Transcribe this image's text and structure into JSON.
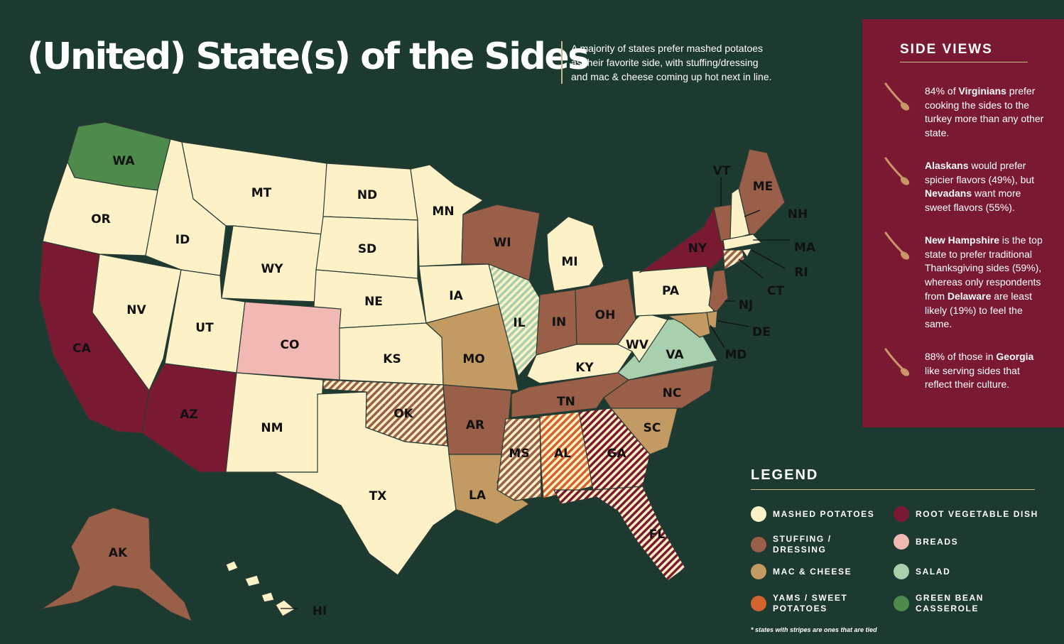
{
  "title": "(United) State(s) of the Sides",
  "subtitle": [
    "A majority of states prefer mashed potatoes",
    "as their favorite side, with stuffing/dressing",
    "and mac & cheese coming up hot next in line."
  ],
  "colors": {
    "background": "#1c3a30",
    "mashed_potatoes": "#fdf1c7",
    "stuffing_dressing": "#9a5f48",
    "mac_cheese": "#c49a63",
    "yams_sweet_potatoes": "#d4622f",
    "root_vegetable_dish": "#7a1a32",
    "breads": "#f1b8b4",
    "salad": "#a8cfae",
    "green_bean_casserole": "#4e8a4c",
    "accent_gold": "#c9b98a"
  },
  "side_views": {
    "title": "SIDE VIEWS",
    "facts": [
      {
        "icon": "spoon-icon",
        "parts": [
          [
            "84% of ",
            false
          ],
          [
            "Virginians",
            true
          ],
          [
            " prefer cooking the sides to the turkey more than any other state.",
            false
          ]
        ]
      },
      {
        "icon": "spoon-icon",
        "parts": [
          [
            "Alaskans",
            true
          ],
          [
            " would prefer spicier flavors (49%), but ",
            false
          ],
          [
            "Nevadans",
            true
          ],
          [
            " want more sweet flavors (55%).",
            false
          ]
        ]
      },
      {
        "icon": "spoon-icon",
        "parts": [
          [
            "New Hampshire",
            true
          ],
          [
            " is the top state to prefer traditional Thanksgiving sides (59%), whereas only respondents from ",
            false
          ],
          [
            "Delaware",
            true
          ],
          [
            " are least likely (19%) to feel the same.",
            false
          ]
        ]
      },
      {
        "icon": "spoon-icon",
        "parts": [
          [
            "88% of those in ",
            false
          ],
          [
            "Georgia",
            true
          ],
          [
            " like serving sides that reflect their culture.",
            false
          ]
        ]
      }
    ]
  },
  "legend": {
    "title": "LEGEND",
    "items": [
      {
        "key": "mashed_potatoes",
        "label": "MASHED POTATOES"
      },
      {
        "key": "stuffing_dressing",
        "label": "STUFFING / DRESSING"
      },
      {
        "key": "mac_cheese",
        "label": "MAC & CHEESE"
      },
      {
        "key": "yams_sweet_potatoes",
        "label": "YAMS / SWEET POTATOES"
      },
      {
        "key": "root_vegetable_dish",
        "label": "ROOT VEGETABLE DISH"
      },
      {
        "key": "breads",
        "label": "BREADS"
      },
      {
        "key": "salad",
        "label": "SALAD"
      },
      {
        "key": "green_bean_casserole",
        "label": "GREEN BEAN CASSEROLE"
      }
    ],
    "note": "* states with stripes are ones that are tied"
  },
  "states": [
    {
      "abbr": "WA",
      "category": "green_bean_casserole"
    },
    {
      "abbr": "OR",
      "category": "mashed_potatoes"
    },
    {
      "abbr": "CA",
      "category": "root_vegetable_dish"
    },
    {
      "abbr": "NV",
      "category": "mashed_potatoes"
    },
    {
      "abbr": "ID",
      "category": "mashed_potatoes"
    },
    {
      "abbr": "MT",
      "category": "mashed_potatoes"
    },
    {
      "abbr": "WY",
      "category": "mashed_potatoes"
    },
    {
      "abbr": "UT",
      "category": "mashed_potatoes"
    },
    {
      "abbr": "AZ",
      "category": "root_vegetable_dish"
    },
    {
      "abbr": "CO",
      "category": "breads"
    },
    {
      "abbr": "NM",
      "category": "mashed_potatoes"
    },
    {
      "abbr": "ND",
      "category": "mashed_potatoes"
    },
    {
      "abbr": "SD",
      "category": "mashed_potatoes"
    },
    {
      "abbr": "NE",
      "category": "mashed_potatoes"
    },
    {
      "abbr": "KS",
      "category": "mashed_potatoes"
    },
    {
      "abbr": "OK",
      "category": "stuffing_dressing",
      "striped": true
    },
    {
      "abbr": "TX",
      "category": "mashed_potatoes"
    },
    {
      "abbr": "MN",
      "category": "mashed_potatoes"
    },
    {
      "abbr": "IA",
      "category": "mashed_potatoes"
    },
    {
      "abbr": "MO",
      "category": "mac_cheese"
    },
    {
      "abbr": "AR",
      "category": "stuffing_dressing"
    },
    {
      "abbr": "LA",
      "category": "mac_cheese"
    },
    {
      "abbr": "WI",
      "category": "stuffing_dressing"
    },
    {
      "abbr": "IL",
      "category": "salad",
      "striped": true
    },
    {
      "abbr": "MI",
      "category": "mashed_potatoes"
    },
    {
      "abbr": "IN",
      "category": "stuffing_dressing"
    },
    {
      "abbr": "OH",
      "category": "stuffing_dressing"
    },
    {
      "abbr": "KY",
      "category": "mashed_potatoes"
    },
    {
      "abbr": "TN",
      "category": "stuffing_dressing"
    },
    {
      "abbr": "MS",
      "category": "stuffing_dressing",
      "striped": true
    },
    {
      "abbr": "AL",
      "category": "yams_sweet_potatoes",
      "striped": true
    },
    {
      "abbr": "GA",
      "category": "root_vegetable_dish",
      "striped": true
    },
    {
      "abbr": "FL",
      "category": "root_vegetable_dish",
      "striped": true
    },
    {
      "abbr": "SC",
      "category": "mac_cheese"
    },
    {
      "abbr": "NC",
      "category": "stuffing_dressing"
    },
    {
      "abbr": "VA",
      "category": "salad"
    },
    {
      "abbr": "WV",
      "category": "mashed_potatoes"
    },
    {
      "abbr": "PA",
      "category": "mashed_potatoes"
    },
    {
      "abbr": "NY",
      "category": "root_vegetable_dish"
    },
    {
      "abbr": "VT",
      "category": "stuffing_dressing"
    },
    {
      "abbr": "NH",
      "category": "mashed_potatoes"
    },
    {
      "abbr": "ME",
      "category": "stuffing_dressing"
    },
    {
      "abbr": "MA",
      "category": "mashed_potatoes"
    },
    {
      "abbr": "RI",
      "category": "mashed_potatoes"
    },
    {
      "abbr": "CT",
      "category": "stuffing_dressing",
      "striped": true
    },
    {
      "abbr": "NJ",
      "category": "stuffing_dressing"
    },
    {
      "abbr": "DE",
      "category": "mac_cheese"
    },
    {
      "abbr": "MD",
      "category": "mac_cheese"
    },
    {
      "abbr": "AK",
      "category": "stuffing_dressing"
    },
    {
      "abbr": "HI",
      "category": "mashed_potatoes"
    }
  ]
}
